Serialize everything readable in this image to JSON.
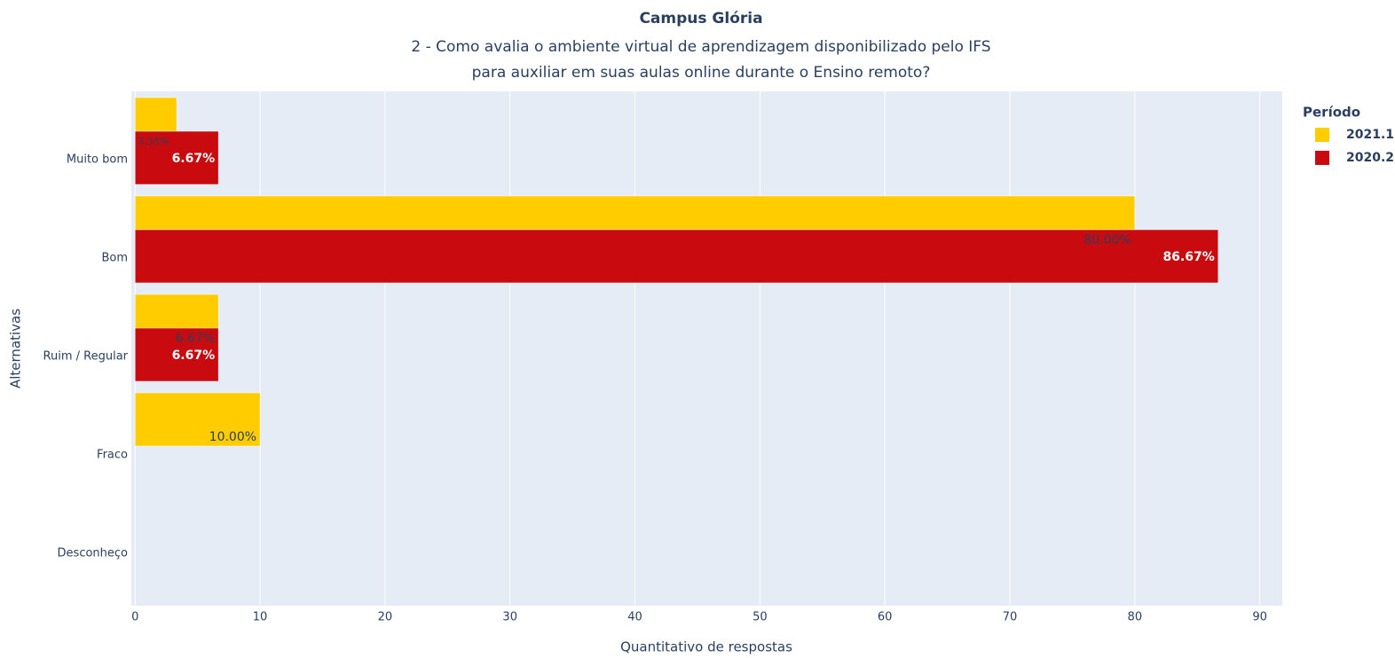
{
  "chart_data": {
    "type": "bar",
    "orientation": "horizontal",
    "title": "Campus Glória",
    "subtitle": [
      "2 - Como avalia o ambiente virtual de aprendizagem disponibilizado pelo IFS",
      "para auxiliar em suas aulas online durante o Ensino remoto?"
    ],
    "x_label": "Quantitativo de respostas",
    "y_label": "Alternativas",
    "legend_title": "Período",
    "legend": "top-right",
    "categories": [
      "Muito bom",
      "Bom",
      "Ruim / Regular",
      "Fraco",
      "Desconheço"
    ],
    "series": [
      {
        "name": "2021.1",
        "color": "#ffcc00",
        "values": [
          3.33,
          80,
          6.67,
          10,
          0
        ],
        "value_labels": [
          "3.33%",
          "80.00%",
          "6.67%",
          "10.00%",
          null
        ]
      },
      {
        "name": "2020.2",
        "color": "#c90a0f",
        "values": [
          6.67,
          86.67,
          6.67,
          0,
          0
        ],
        "value_labels": [
          "6.67%",
          "86.67%",
          "6.67%",
          null,
          null
        ]
      }
    ],
    "xlim": [
      -0.3,
      91.8
    ],
    "xticks": [
      0,
      10,
      20,
      30,
      40,
      50,
      60,
      70,
      80,
      90
    ],
    "grid": true
  }
}
